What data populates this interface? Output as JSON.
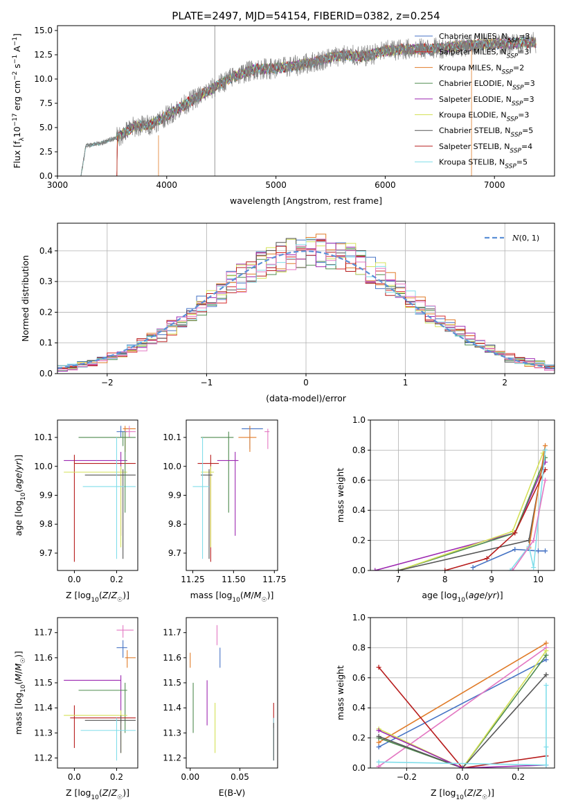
{
  "chart_data": [
    {
      "id": "spectrum",
      "type": "line",
      "title": "PLATE=2497, MJD=54154, FIBERID=0382, z=0.254",
      "xlabel": "wavelength [Angstrom, rest frame]",
      "ylabel": "Flux [fλ10⁻¹⁷ erg cm⁻² s⁻¹ A⁻¹]",
      "xlim": [
        3000,
        7550
      ],
      "ylim": [
        0,
        15.5
      ],
      "xticks": [
        3000,
        4000,
        5000,
        6000,
        7000
      ],
      "yticks": [
        0.0,
        2.5,
        5.0,
        7.5,
        10.0,
        12.5,
        15.0
      ],
      "grid": false,
      "legend_position": "right",
      "anchors": {
        "x": [
          3215,
          3260,
          3400,
          3550,
          3700,
          3850,
          4000,
          4200,
          4400,
          4600,
          4800,
          5000,
          5200,
          5400,
          5600,
          5800,
          6000,
          6200,
          6400,
          6600,
          6800,
          7000,
          7200,
          7400
        ],
        "y": [
          0.0,
          3.1,
          3.4,
          4.0,
          5.1,
          5.3,
          6.2,
          7.6,
          8.9,
          10.2,
          11.0,
          11.1,
          11.4,
          11.9,
          12.5,
          12.3,
          12.9,
          13.1,
          13.1,
          13.3,
          13.5,
          13.6,
          13.7,
          13.8
        ]
      },
      "series": [
        {
          "name": "Chabrier MILES, N_SSP=3",
          "color": "#4472c4"
        },
        {
          "name": "Salpeter MILES, N_SSP=3",
          "color": "#d62728"
        },
        {
          "name": "Kroupa MILES, N_SSP=2",
          "color": "#e07b28"
        },
        {
          "name": "Chabrier ELODIE, N_SSP=3",
          "color": "#4e8a4e"
        },
        {
          "name": "Salpeter ELODIE, N_SSP=3",
          "color": "#9c27b0"
        },
        {
          "name": "Kroupa ELODIE, N_SSP=3",
          "color": "#d4e157"
        },
        {
          "name": "Chabrier STELIB, N_SSP=5",
          "color": "#555555"
        },
        {
          "name": "Salpeter STELIB, N_SSP=4",
          "color": "#b71c1c"
        },
        {
          "name": "Kroupa STELIB, N_SSP=5",
          "color": "#80deea"
        }
      ],
      "legend_labels": [
        {
          "pre": "Chabrier MILES, N",
          "sub": "SSP",
          "post": "=3"
        },
        {
          "pre": "Salpeter MILES, N",
          "sub": "SSP",
          "post": "=3"
        },
        {
          "pre": "Kroupa MILES, N",
          "sub": "SSP",
          "post": "=2"
        },
        {
          "pre": "Chabrier ELODIE, N",
          "sub": "SSP",
          "post": "=3"
        },
        {
          "pre": "Salpeter ELODIE, N",
          "sub": "SSP",
          "post": "=3"
        },
        {
          "pre": "Kroupa ELODIE, N",
          "sub": "SSP",
          "post": "=3"
        },
        {
          "pre": "Chabrier STELIB, N",
          "sub": "SSP",
          "post": "=5"
        },
        {
          "pre": "Salpeter STELIB, N",
          "sub": "SSP",
          "post": "=4"
        },
        {
          "pre": "Kroupa STELIB, N",
          "sub": "SSP",
          "post": "=5"
        }
      ],
      "data_color": "#808080"
    },
    {
      "id": "residuals",
      "type": "histogram",
      "xlabel": "(data-model)/error",
      "ylabel": "Normed distribution",
      "xlim": [
        -2.5,
        2.5
      ],
      "ylim": [
        0,
        0.49
      ],
      "xticks": [
        -2,
        -1,
        0,
        1,
        2
      ],
      "yticks": [
        0.0,
        0.1,
        0.2,
        0.3,
        0.4
      ],
      "grid": true,
      "legend": [
        {
          "name": "N(0,1)",
          "color": "#5b8fd6",
          "style": "dashed"
        }
      ],
      "legend_position": "top-right",
      "bin_width": 0.1,
      "bin_start": -2.5,
      "series_colors": [
        "#4472c4",
        "#d62728",
        "#e07b28",
        "#4e8a4e",
        "#9c27b0",
        "#d4e157",
        "#555555",
        "#b71c1c",
        "#80deea",
        "#e377c2"
      ]
    },
    {
      "id": "age-Z",
      "type": "errorbar",
      "xlabel": "Z [log10(Z/Z☉)]",
      "ylabel": "age [log10(age/yr)]",
      "xlim": [
        -0.08,
        0.3
      ],
      "ylim": [
        9.64,
        10.16
      ],
      "xticks": [
        0.0,
        0.2
      ],
      "yticks": [
        9.7,
        9.8,
        9.9,
        10.0,
        10.1
      ],
      "points": [
        {
          "x": 0.24,
          "y": 10.13,
          "xlo": 0.23,
          "xhi": 0.29,
          "ylo": 10.05,
          "yhi": 10.14,
          "color": "#e07b28"
        },
        {
          "x": 0.22,
          "y": 10.12,
          "xlo": 0.2,
          "xhi": 0.25,
          "ylo": 10.1,
          "yhi": 10.14,
          "color": "#4472c4"
        },
        {
          "x": 0.26,
          "y": 10.12,
          "xlo": 0.24,
          "xhi": 0.29,
          "ylo": 10.1,
          "yhi": 10.14,
          "color": "#e377c2"
        },
        {
          "x": 0.23,
          "y": 10.1,
          "xlo": 0.02,
          "xhi": 0.29,
          "ylo": 10.07,
          "yhi": 10.12,
          "color": "#4e8a4e"
        },
        {
          "x": 0.22,
          "y": 10.02,
          "xlo": -0.05,
          "xhi": 0.25,
          "ylo": 9.76,
          "yhi": 10.05,
          "color": "#9c27b0"
        },
        {
          "x": 0.0,
          "y": 10.01,
          "xlo": 0.0,
          "xhi": 0.29,
          "ylo": 9.67,
          "yhi": 10.04,
          "color": "#b71c1c"
        },
        {
          "x": 0.22,
          "y": 9.98,
          "xlo": -0.05,
          "xhi": 0.25,
          "ylo": 9.72,
          "yhi": 10.0,
          "color": "#d4e157"
        },
        {
          "x": 0.23,
          "y": 9.97,
          "xlo": 0.05,
          "xhi": 0.29,
          "ylo": 9.68,
          "yhi": 9.99,
          "color": "#555555"
        },
        {
          "x": 0.2,
          "y": 9.93,
          "xlo": 0.04,
          "xhi": 0.29,
          "ylo": 9.68,
          "yhi": 10.1,
          "color": "#80deea"
        },
        {
          "x": 0.24,
          "y": 10.1,
          "xlo": 0.24,
          "xhi": 0.24,
          "ylo": 9.84,
          "yhi": 10.12,
          "color": "#4e8a4e"
        }
      ]
    },
    {
      "id": "age-mass",
      "type": "errorbar",
      "xlabel": "mass [log10(M/M☉)]",
      "ylabel": "",
      "xlim": [
        11.21,
        11.77
      ],
      "ylim": [
        9.64,
        10.16
      ],
      "xticks": [
        11.25,
        11.5,
        11.75
      ],
      "yticks": [
        9.7,
        9.8,
        9.9,
        10.0,
        10.1
      ],
      "points": [
        {
          "x": 11.6,
          "y": 10.13,
          "xlo": 11.55,
          "xhi": 11.68,
          "ylo": 10.06,
          "yhi": 10.14,
          "color": "#4472c4"
        },
        {
          "x": 11.71,
          "y": 10.12,
          "xlo": 11.69,
          "xhi": 11.72,
          "ylo": 10.06,
          "yhi": 10.13,
          "color": "#e377c2"
        },
        {
          "x": 11.6,
          "y": 10.1,
          "xlo": 11.53,
          "xhi": 11.64,
          "ylo": 10.05,
          "yhi": 10.14,
          "color": "#e07b28"
        },
        {
          "x": 11.47,
          "y": 10.1,
          "xlo": 11.3,
          "xhi": 11.5,
          "ylo": 9.84,
          "yhi": 10.12,
          "color": "#4e8a4e"
        },
        {
          "x": 11.51,
          "y": 10.02,
          "xlo": 11.4,
          "xhi": 11.53,
          "ylo": 9.76,
          "yhi": 10.05,
          "color": "#9c27b0"
        },
        {
          "x": 11.36,
          "y": 10.01,
          "xlo": 11.28,
          "xhi": 11.41,
          "ylo": 9.67,
          "yhi": 10.04,
          "color": "#b71c1c"
        },
        {
          "x": 11.36,
          "y": 9.98,
          "xlo": 11.3,
          "xhi": 11.38,
          "ylo": 9.72,
          "yhi": 10.0,
          "color": "#d4e157"
        },
        {
          "x": 11.35,
          "y": 9.97,
          "xlo": 11.3,
          "xhi": 11.37,
          "ylo": 9.68,
          "yhi": 9.99,
          "color": "#555555"
        },
        {
          "x": 11.31,
          "y": 9.93,
          "xlo": 11.25,
          "xhi": 11.35,
          "ylo": 9.68,
          "yhi": 10.1,
          "color": "#80deea"
        }
      ]
    },
    {
      "id": "weight-age",
      "type": "line",
      "xlabel": "age [log10(age/yr)]",
      "ylabel": "mass weight",
      "xlim": [
        6.4,
        10.35
      ],
      "ylim": [
        0,
        1.0
      ],
      "xticks": [
        7,
        8,
        9,
        10
      ],
      "yticks": [
        0.0,
        0.2,
        0.4,
        0.6,
        0.8,
        1.0
      ],
      "grid": true,
      "series": [
        {
          "color": "#9c27b0",
          "x": [
            6.5,
            9.5,
            10.15
          ],
          "y": [
            0.0,
            0.25,
            0.72
          ]
        },
        {
          "color": "#4e8a4e",
          "x": [
            7.0,
            9.5,
            10.15
          ],
          "y": [
            0.0,
            0.25,
            0.75
          ]
        },
        {
          "color": "#d4e157",
          "x": [
            7.0,
            9.45,
            10.1
          ],
          "y": [
            0.0,
            0.26,
            0.78
          ]
        },
        {
          "color": "#555555",
          "x": [
            7.0,
            9.8,
            10.15
          ],
          "y": [
            0.0,
            0.2,
            0.8
          ]
        },
        {
          "color": "#e07b28",
          "x": [
            9.8,
            10.15
          ],
          "y": [
            0.15,
            0.83
          ]
        },
        {
          "color": "#b71c1c",
          "x": [
            8.0,
            8.9,
            9.5,
            10.15
          ],
          "y": [
            0.0,
            0.08,
            0.25,
            0.67
          ]
        },
        {
          "color": "#4472c4",
          "x": [
            8.6,
            9.5,
            10.0,
            10.15
          ],
          "y": [
            0.02,
            0.14,
            0.13,
            0.13
          ]
        },
        {
          "color": "#80deea",
          "x": [
            9.4,
            9.8,
            9.9,
            10.15
          ],
          "y": [
            0.0,
            0.16,
            0.02,
            0.8
          ]
        },
        {
          "color": "#e377c2",
          "x": [
            9.45,
            9.9,
            10.15
          ],
          "y": [
            0.0,
            0.2,
            0.6
          ]
        }
      ]
    },
    {
      "id": "mass-Z",
      "type": "errorbar",
      "xlabel": "Z [log10(Z/Z☉)]",
      "ylabel": "mass [log10(M/M☉)]",
      "xlim": [
        -0.08,
        0.3
      ],
      "ylim": [
        11.16,
        11.76
      ],
      "xticks": [
        0.0,
        0.2
      ],
      "yticks": [
        11.2,
        11.3,
        11.4,
        11.5,
        11.6,
        11.7
      ],
      "points": [
        {
          "x": 0.23,
          "y": 11.71,
          "xlo": 0.2,
          "xhi": 0.28,
          "ylo": 11.68,
          "yhi": 11.73,
          "color": "#e377c2"
        },
        {
          "x": 0.23,
          "y": 11.64,
          "xlo": 0.2,
          "xhi": 0.25,
          "ylo": 11.6,
          "yhi": 11.67,
          "color": "#4472c4"
        },
        {
          "x": 0.25,
          "y": 11.6,
          "xlo": 0.24,
          "xhi": 0.29,
          "ylo": 11.56,
          "yhi": 11.63,
          "color": "#e07b28"
        },
        {
          "x": 0.22,
          "y": 11.51,
          "xlo": -0.05,
          "xhi": 0.22,
          "ylo": 11.34,
          "yhi": 11.53,
          "color": "#9c27b0"
        },
        {
          "x": 0.24,
          "y": 11.47,
          "xlo": 0.02,
          "xhi": 0.25,
          "ylo": 11.3,
          "yhi": 11.5,
          "color": "#4e8a4e"
        },
        {
          "x": 0.0,
          "y": 11.36,
          "xlo": -0.02,
          "xhi": 0.29,
          "ylo": 11.24,
          "yhi": 11.41,
          "color": "#b71c1c"
        },
        {
          "x": 0.22,
          "y": 11.37,
          "xlo": -0.05,
          "xhi": 0.25,
          "ylo": 11.22,
          "yhi": 11.39,
          "color": "#d4e157"
        },
        {
          "x": 0.22,
          "y": 11.35,
          "xlo": 0.05,
          "xhi": 0.29,
          "ylo": 11.22,
          "yhi": 11.37,
          "color": "#555555"
        },
        {
          "x": 0.2,
          "y": 11.31,
          "xlo": 0.03,
          "xhi": 0.29,
          "ylo": 11.19,
          "yhi": 11.36,
          "color": "#80deea"
        }
      ]
    },
    {
      "id": "mass-ebv",
      "type": "errorbar",
      "xlabel": "E(B-V)",
      "ylabel": "",
      "xlim": [
        -0.004,
        0.088
      ],
      "ylim": [
        11.16,
        11.76
      ],
      "xticks": [
        0.0,
        0.05
      ],
      "yticks": [
        11.2,
        11.3,
        11.4,
        11.5,
        11.6,
        11.7
      ],
      "points": [
        {
          "x": 0.027,
          "y": 11.69,
          "xlo": 0.027,
          "xhi": 0.027,
          "ylo": 11.65,
          "yhi": 11.73,
          "color": "#e377c2"
        },
        {
          "x": 0.03,
          "y": 11.6,
          "xlo": 0.03,
          "xhi": 0.03,
          "ylo": 11.56,
          "yhi": 11.64,
          "color": "#4472c4"
        },
        {
          "x": 0.0,
          "y": 11.59,
          "xlo": 0.0,
          "xhi": 0.0,
          "ylo": 11.56,
          "yhi": 11.62,
          "color": "#e07b28"
        },
        {
          "x": 0.017,
          "y": 11.45,
          "xlo": 0.017,
          "xhi": 0.017,
          "ylo": 11.33,
          "yhi": 11.51,
          "color": "#9c27b0"
        },
        {
          "x": 0.003,
          "y": 11.42,
          "xlo": 0.003,
          "xhi": 0.003,
          "ylo": 11.3,
          "yhi": 11.5,
          "color": "#4e8a4e"
        },
        {
          "x": 0.025,
          "y": 11.33,
          "xlo": 0.025,
          "xhi": 0.025,
          "ylo": 11.22,
          "yhi": 11.42,
          "color": "#d4e157"
        },
        {
          "x": 0.084,
          "y": 11.37,
          "xlo": 0.084,
          "xhi": 0.084,
          "ylo": 11.32,
          "yhi": 11.42,
          "color": "#b71c1c"
        },
        {
          "x": 0.084,
          "y": 11.28,
          "xlo": 0.084,
          "xhi": 0.084,
          "ylo": 11.19,
          "yhi": 11.36,
          "color": "#80deea"
        },
        {
          "x": 0.084,
          "y": 11.27,
          "xlo": 0.084,
          "xhi": 0.084,
          "ylo": 11.19,
          "yhi": 11.34,
          "color": "#555555"
        }
      ]
    },
    {
      "id": "weight-Z",
      "type": "line",
      "xlabel": "Z [log10(Z/Z☉)]",
      "ylabel": "mass weight",
      "xlim": [
        -0.33,
        0.33
      ],
      "ylim": [
        0,
        1.0
      ],
      "xticks": [
        -0.2,
        0.0,
        0.2
      ],
      "yticks": [
        0.0,
        0.2,
        0.4,
        0.6,
        0.8,
        1.0
      ],
      "grid": true,
      "series": [
        {
          "color": "#e07b28",
          "x": [
            -0.3,
            0.3
          ],
          "y": [
            0.17,
            0.83
          ]
        },
        {
          "color": "#4472c4",
          "x": [
            -0.3,
            0.3
          ],
          "y": [
            0.14,
            0.72
          ]
        },
        {
          "color": "#e377c2",
          "x": [
            -0.3,
            0.3
          ],
          "y": [
            0.01,
            0.8
          ]
        },
        {
          "color": "#b71c1c",
          "x": [
            -0.3,
            0.0,
            0.3
          ],
          "y": [
            0.67,
            0.0,
            0.08
          ]
        },
        {
          "color": "#4e8a4e",
          "x": [
            -0.3,
            0.0,
            0.3
          ],
          "y": [
            0.2,
            0.0,
            0.75
          ]
        },
        {
          "color": "#d4e157",
          "x": [
            -0.3,
            0.0,
            0.3
          ],
          "y": [
            0.26,
            0.0,
            0.78
          ]
        },
        {
          "color": "#555555",
          "x": [
            -0.3,
            0.0,
            0.3
          ],
          "y": [
            0.21,
            0.0,
            0.62
          ]
        },
        {
          "color": "#9c27b0",
          "x": [
            -0.3,
            0.0,
            0.3
          ],
          "y": [
            0.25,
            0.0,
            0.02
          ]
        },
        {
          "color": "#80deea",
          "x": [
            -0.3,
            0.3,
            0.3
          ],
          "y": [
            0.04,
            0.02,
            0.55
          ]
        },
        {
          "color": "#80deea",
          "x": [
            0.3,
            0.3
          ],
          "y": [
            0.02,
            0.14
          ]
        }
      ]
    }
  ]
}
